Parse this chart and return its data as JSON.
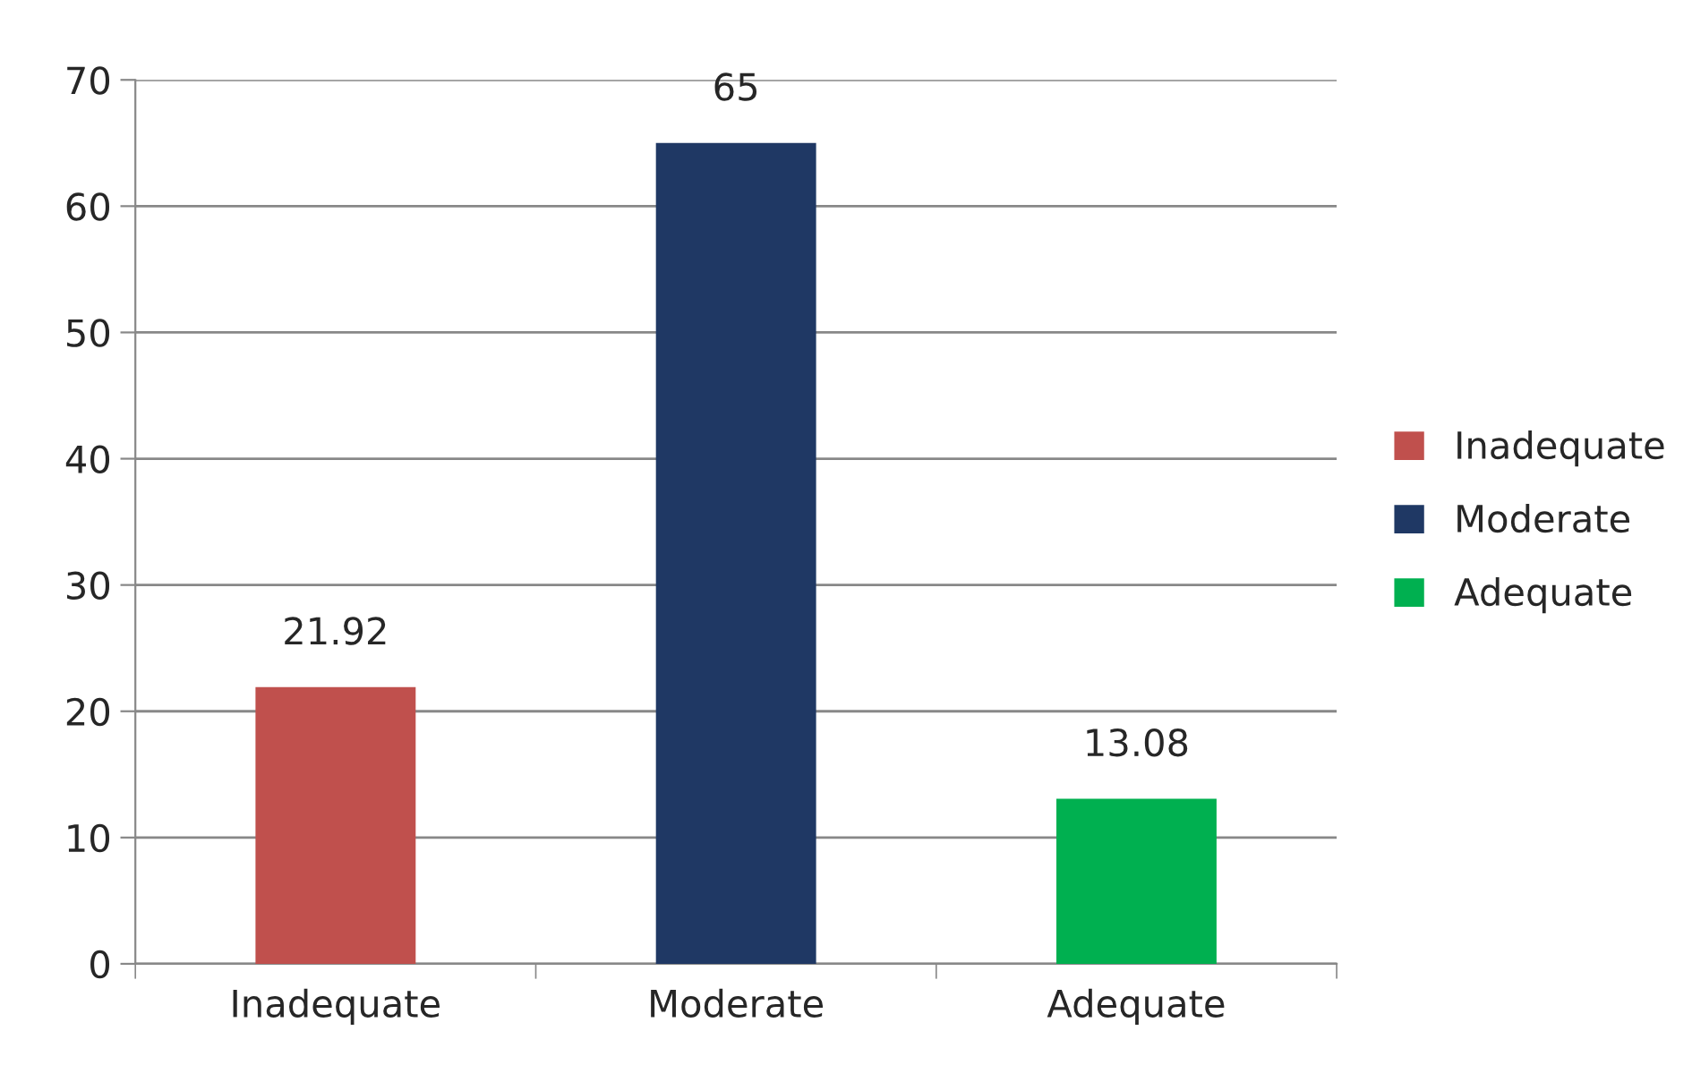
{
  "chart_data": {
    "type": "bar",
    "categories": [
      "Inadequate",
      "Moderate",
      "Adequate"
    ],
    "series": [
      {
        "name": "Inadequate",
        "color": "#c0504d",
        "values": [
          21.92,
          null,
          null
        ]
      },
      {
        "name": "Moderate",
        "color": "#1f3864",
        "values": [
          null,
          65,
          null
        ]
      },
      {
        "name": "Adequate",
        "color": "#00b050",
        "values": [
          null,
          null,
          13.08
        ]
      }
    ],
    "ylim": [
      0,
      70
    ],
    "yticks": [
      0,
      10,
      20,
      30,
      40,
      50,
      60,
      70
    ],
    "grid": "y",
    "legend": "right",
    "data_labels": true
  }
}
